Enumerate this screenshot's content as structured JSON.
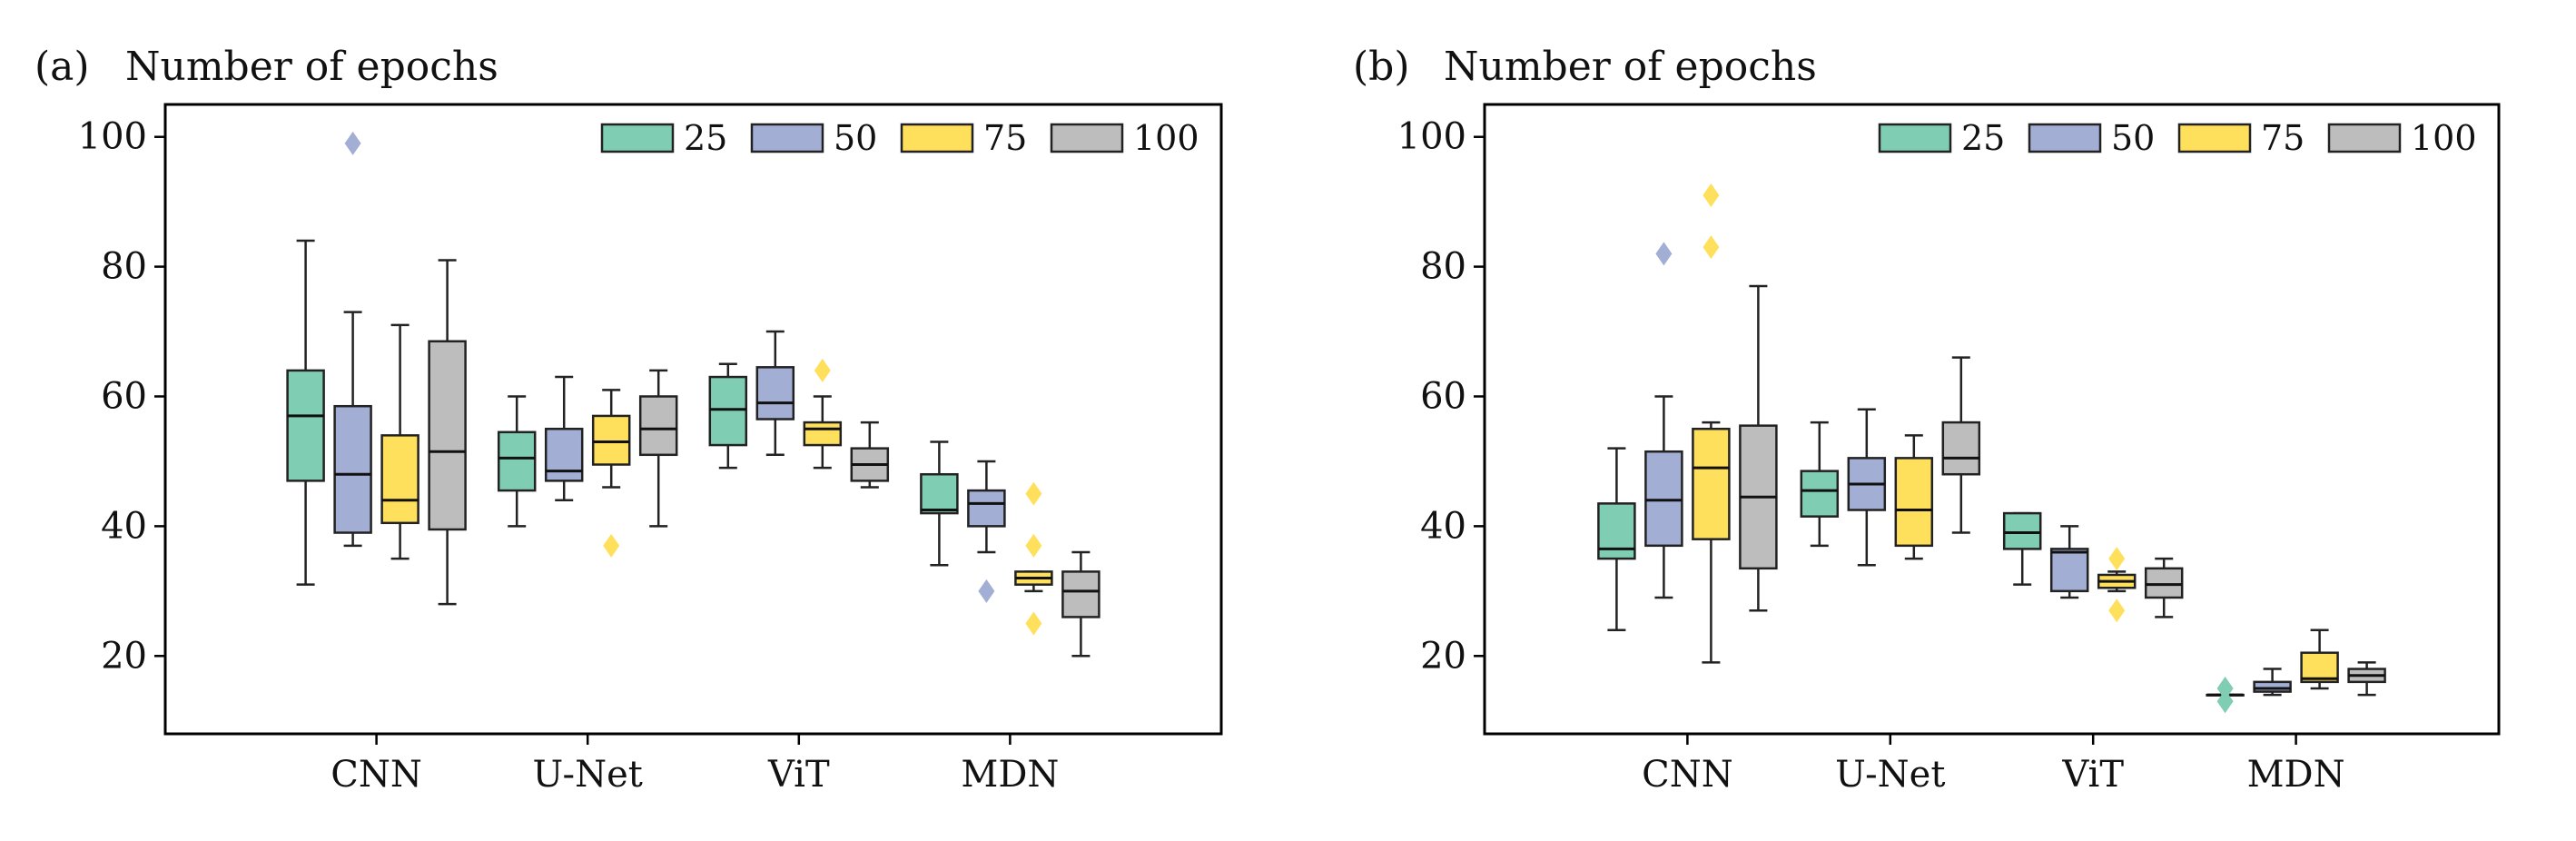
{
  "chart_data": [
    {
      "type": "boxplot",
      "panel_label": "(a)",
      "title": "Number of epochs",
      "categories": [
        "CNN",
        "U-Net",
        "ViT",
        "MDN"
      ],
      "ylim": [
        8,
        105
      ],
      "yticks": [
        20,
        40,
        60,
        80,
        100
      ],
      "grid": false,
      "legend": {
        "placement": "top-right",
        "entries": [
          "25",
          "50",
          "75",
          "100"
        ]
      },
      "series": [
        {
          "name": "25",
          "color": "#7fcdb3",
          "boxes": [
            {
              "category": "CNN",
              "whislo": 31,
              "q1": 47,
              "med": 57,
              "q3": 64,
              "whishi": 84,
              "fliers": []
            },
            {
              "category": "U-Net",
              "whislo": 40,
              "q1": 45.5,
              "med": 50.5,
              "q3": 54.5,
              "whishi": 60,
              "fliers": []
            },
            {
              "category": "ViT",
              "whislo": 49,
              "q1": 52.5,
              "med": 58,
              "q3": 63,
              "whishi": 65,
              "fliers": []
            },
            {
              "category": "MDN",
              "whislo": 34,
              "q1": 42,
              "med": 42.5,
              "q3": 48,
              "whishi": 53,
              "fliers": []
            }
          ]
        },
        {
          "name": "50",
          "color": "#a3aed4",
          "boxes": [
            {
              "category": "CNN",
              "whislo": 37,
              "q1": 39,
              "med": 48,
              "q3": 58.5,
              "whishi": 73,
              "fliers": [
                99
              ]
            },
            {
              "category": "U-Net",
              "whislo": 44,
              "q1": 47,
              "med": 48.5,
              "q3": 55,
              "whishi": 63,
              "fliers": []
            },
            {
              "category": "ViT",
              "whislo": 51,
              "q1": 56.5,
              "med": 59,
              "q3": 64.5,
              "whishi": 70,
              "fliers": []
            },
            {
              "category": "MDN",
              "whislo": 36,
              "q1": 40,
              "med": 43.5,
              "q3": 45.5,
              "whishi": 50,
              "fliers": [
                30
              ]
            }
          ]
        },
        {
          "name": "75",
          "color": "#ffe05c",
          "boxes": [
            {
              "category": "CNN",
              "whislo": 35,
              "q1": 40.5,
              "med": 44,
              "q3": 54,
              "whishi": 71,
              "fliers": []
            },
            {
              "category": "U-Net",
              "whislo": 46,
              "q1": 49.5,
              "med": 53,
              "q3": 57,
              "whishi": 61,
              "fliers": [
                37
              ]
            },
            {
              "category": "ViT",
              "whislo": 49,
              "q1": 52.5,
              "med": 55,
              "q3": 56,
              "whishi": 60,
              "fliers": [
                64
              ]
            },
            {
              "category": "MDN",
              "whislo": 30,
              "q1": 31,
              "med": 32,
              "q3": 33,
              "whishi": 33,
              "fliers": [
                45,
                37,
                25
              ]
            }
          ]
        },
        {
          "name": "100",
          "color": "#bdbdbd",
          "boxes": [
            {
              "category": "CNN",
              "whislo": 28,
              "q1": 39.5,
              "med": 51.5,
              "q3": 68.5,
              "whishi": 81,
              "fliers": []
            },
            {
              "category": "U-Net",
              "whislo": 40,
              "q1": 51,
              "med": 55,
              "q3": 60,
              "whishi": 64,
              "fliers": []
            },
            {
              "category": "ViT",
              "whislo": 46,
              "q1": 47,
              "med": 49.5,
              "q3": 52,
              "whishi": 56,
              "fliers": []
            },
            {
              "category": "MDN",
              "whislo": 20,
              "q1": 26,
              "med": 30,
              "q3": 33,
              "whishi": 36,
              "fliers": []
            }
          ]
        }
      ]
    },
    {
      "type": "boxplot",
      "panel_label": "(b)",
      "title": "Number of epochs",
      "categories": [
        "CNN",
        "U-Net",
        "ViT",
        "MDN"
      ],
      "ylim": [
        8,
        105
      ],
      "yticks": [
        20,
        40,
        60,
        80,
        100
      ],
      "grid": false,
      "legend": {
        "placement": "top-right",
        "entries": [
          "25",
          "50",
          "75",
          "100"
        ]
      },
      "series": [
        {
          "name": "25",
          "color": "#7fcdb3",
          "boxes": [
            {
              "category": "CNN",
              "whislo": 24,
              "q1": 35,
              "med": 36.5,
              "q3": 43.5,
              "whishi": 52,
              "fliers": []
            },
            {
              "category": "U-Net",
              "whislo": 37,
              "q1": 41.5,
              "med": 45.5,
              "q3": 48.5,
              "whishi": 56,
              "fliers": []
            },
            {
              "category": "ViT",
              "whislo": 31,
              "q1": 36.5,
              "med": 39,
              "q3": 42,
              "whishi": 42,
              "fliers": []
            },
            {
              "category": "MDN",
              "whislo": 14,
              "q1": 14,
              "med": 14,
              "q3": 14,
              "whishi": 14,
              "fliers": [
                15,
                13
              ]
            }
          ]
        },
        {
          "name": "50",
          "color": "#a3aed4",
          "boxes": [
            {
              "category": "CNN",
              "whislo": 29,
              "q1": 37,
              "med": 44,
              "q3": 51.5,
              "whishi": 60,
              "fliers": [
                82
              ]
            },
            {
              "category": "U-Net",
              "whislo": 34,
              "q1": 42.5,
              "med": 46.5,
              "q3": 50.5,
              "whishi": 58,
              "fliers": []
            },
            {
              "category": "ViT",
              "whislo": 29,
              "q1": 30,
              "med": 36,
              "q3": 36.5,
              "whishi": 40,
              "fliers": []
            },
            {
              "category": "MDN",
              "whislo": 14,
              "q1": 14.5,
              "med": 15,
              "q3": 16,
              "whishi": 18,
              "fliers": []
            }
          ]
        },
        {
          "name": "75",
          "color": "#ffe05c",
          "boxes": [
            {
              "category": "CNN",
              "whislo": 19,
              "q1": 38,
              "med": 49,
              "q3": 55,
              "whishi": 56,
              "fliers": [
                91,
                83
              ]
            },
            {
              "category": "U-Net",
              "whislo": 35,
              "q1": 37,
              "med": 42.5,
              "q3": 50.5,
              "whishi": 54,
              "fliers": []
            },
            {
              "category": "ViT",
              "whislo": 30,
              "q1": 30.5,
              "med": 31.5,
              "q3": 32.5,
              "whishi": 33,
              "fliers": [
                35,
                27
              ]
            },
            {
              "category": "MDN",
              "whislo": 15,
              "q1": 16,
              "med": 16.5,
              "q3": 20.5,
              "whishi": 24,
              "fliers": []
            }
          ]
        },
        {
          "name": "100",
          "color": "#bdbdbd",
          "boxes": [
            {
              "category": "CNN",
              "whislo": 27,
              "q1": 33.5,
              "med": 44.5,
              "q3": 55.5,
              "whishi": 77,
              "fliers": []
            },
            {
              "category": "U-Net",
              "whislo": 39,
              "q1": 48,
              "med": 50.5,
              "q3": 56,
              "whishi": 66,
              "fliers": []
            },
            {
              "category": "ViT",
              "whislo": 26,
              "q1": 29,
              "med": 31,
              "q3": 33.5,
              "whishi": 35,
              "fliers": []
            },
            {
              "category": "MDN",
              "whislo": 14,
              "q1": 16,
              "med": 17,
              "q3": 18,
              "whishi": 19,
              "fliers": []
            }
          ]
        }
      ]
    }
  ]
}
